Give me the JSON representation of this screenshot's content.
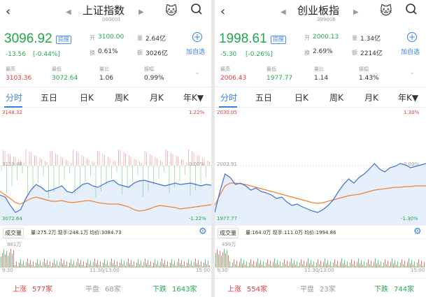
{
  "colors": {
    "up": "#e03b3b",
    "down": "#21a84a",
    "accent": "#3a7fe0",
    "price_line": "#3b6fd9",
    "avg_line": "#f08030"
  },
  "panels": [
    {
      "title": "上证指数",
      "code": "000001",
      "price": "3096.92",
      "badge": "提醒",
      "change": "-13.56",
      "change_pct": "[-0.44%]",
      "stats": {
        "open_label": "开",
        "open": "3100.00",
        "volume_label": "量",
        "volume": "2.64亿",
        "turnover_label": "换",
        "turnover": "0.61%",
        "amount_label": "额",
        "amount": "3026亿"
      },
      "add_fav": "加自选",
      "metrics": [
        {
          "label": "最高",
          "value": "3103.36"
        },
        {
          "label": "最低",
          "value": "3072.64"
        },
        {
          "label": "量比",
          "value": "1.06"
        },
        {
          "label": "振幅",
          "value": "0.99%"
        }
      ],
      "tabs": [
        "分时",
        "五日",
        "日K",
        "周K",
        "月K",
        "年K▼"
      ],
      "chart": {
        "max_price": "3148.32",
        "max_pct": "1.22%",
        "ref_price": "3110.48",
        "ref_pct": "0.00%",
        "min_price": "3072.64",
        "min_pct": "-1.22%"
      },
      "vol_info": {
        "button": "成交量",
        "text": "量:275.2万  现手:248.1万  均价:3084.73",
        "max_vol": "981万"
      },
      "times": [
        "9:30",
        "11:30/13:00",
        "15:00"
      ],
      "footer": {
        "up_label": "上涨",
        "up": "577家",
        "flat_label": "平盘",
        "flat": "68家",
        "down_label": "下跌",
        "down": "1643家"
      }
    },
    {
      "title": "创业板指",
      "code": "399006",
      "price": "1998.61",
      "badge": "提醒",
      "change": "-5.30",
      "change_pct": "[-0.26%]",
      "stats": {
        "open_label": "开",
        "open": "2000.13",
        "volume_label": "量",
        "volume": "1.34亿",
        "turnover_label": "换",
        "turnover": "2.69%",
        "amount_label": "额",
        "amount": "2214亿"
      },
      "add_fav": "加自选",
      "metrics": [
        {
          "label": "最高",
          "value": "2006.43"
        },
        {
          "label": "最低",
          "value": "1977.77"
        },
        {
          "label": "量比",
          "value": "1.14"
        },
        {
          "label": "振幅",
          "value": "1.43%"
        }
      ],
      "tabs": [
        "分时",
        "五日",
        "日K",
        "周K",
        "月K",
        "年K▼"
      ],
      "chart": {
        "max_price": "2030.05",
        "max_pct": "1.30%",
        "ref_price": "2003.91",
        "ref_pct": "0.00%",
        "min_price": "1977.77",
        "min_pct": "-1.30%"
      },
      "vol_info": {
        "button": "成交量",
        "text": "量:164.0万  现手:111.0万  均价:1994.86",
        "max_vol": "499万"
      },
      "times": [
        "9:30",
        "11:30/13:00",
        "15:00"
      ],
      "footer": {
        "up_label": "上涨",
        "up": "554家",
        "flat_label": "平盘",
        "flat": "23家",
        "down_label": "下跌",
        "down": "744家"
      }
    }
  ]
}
